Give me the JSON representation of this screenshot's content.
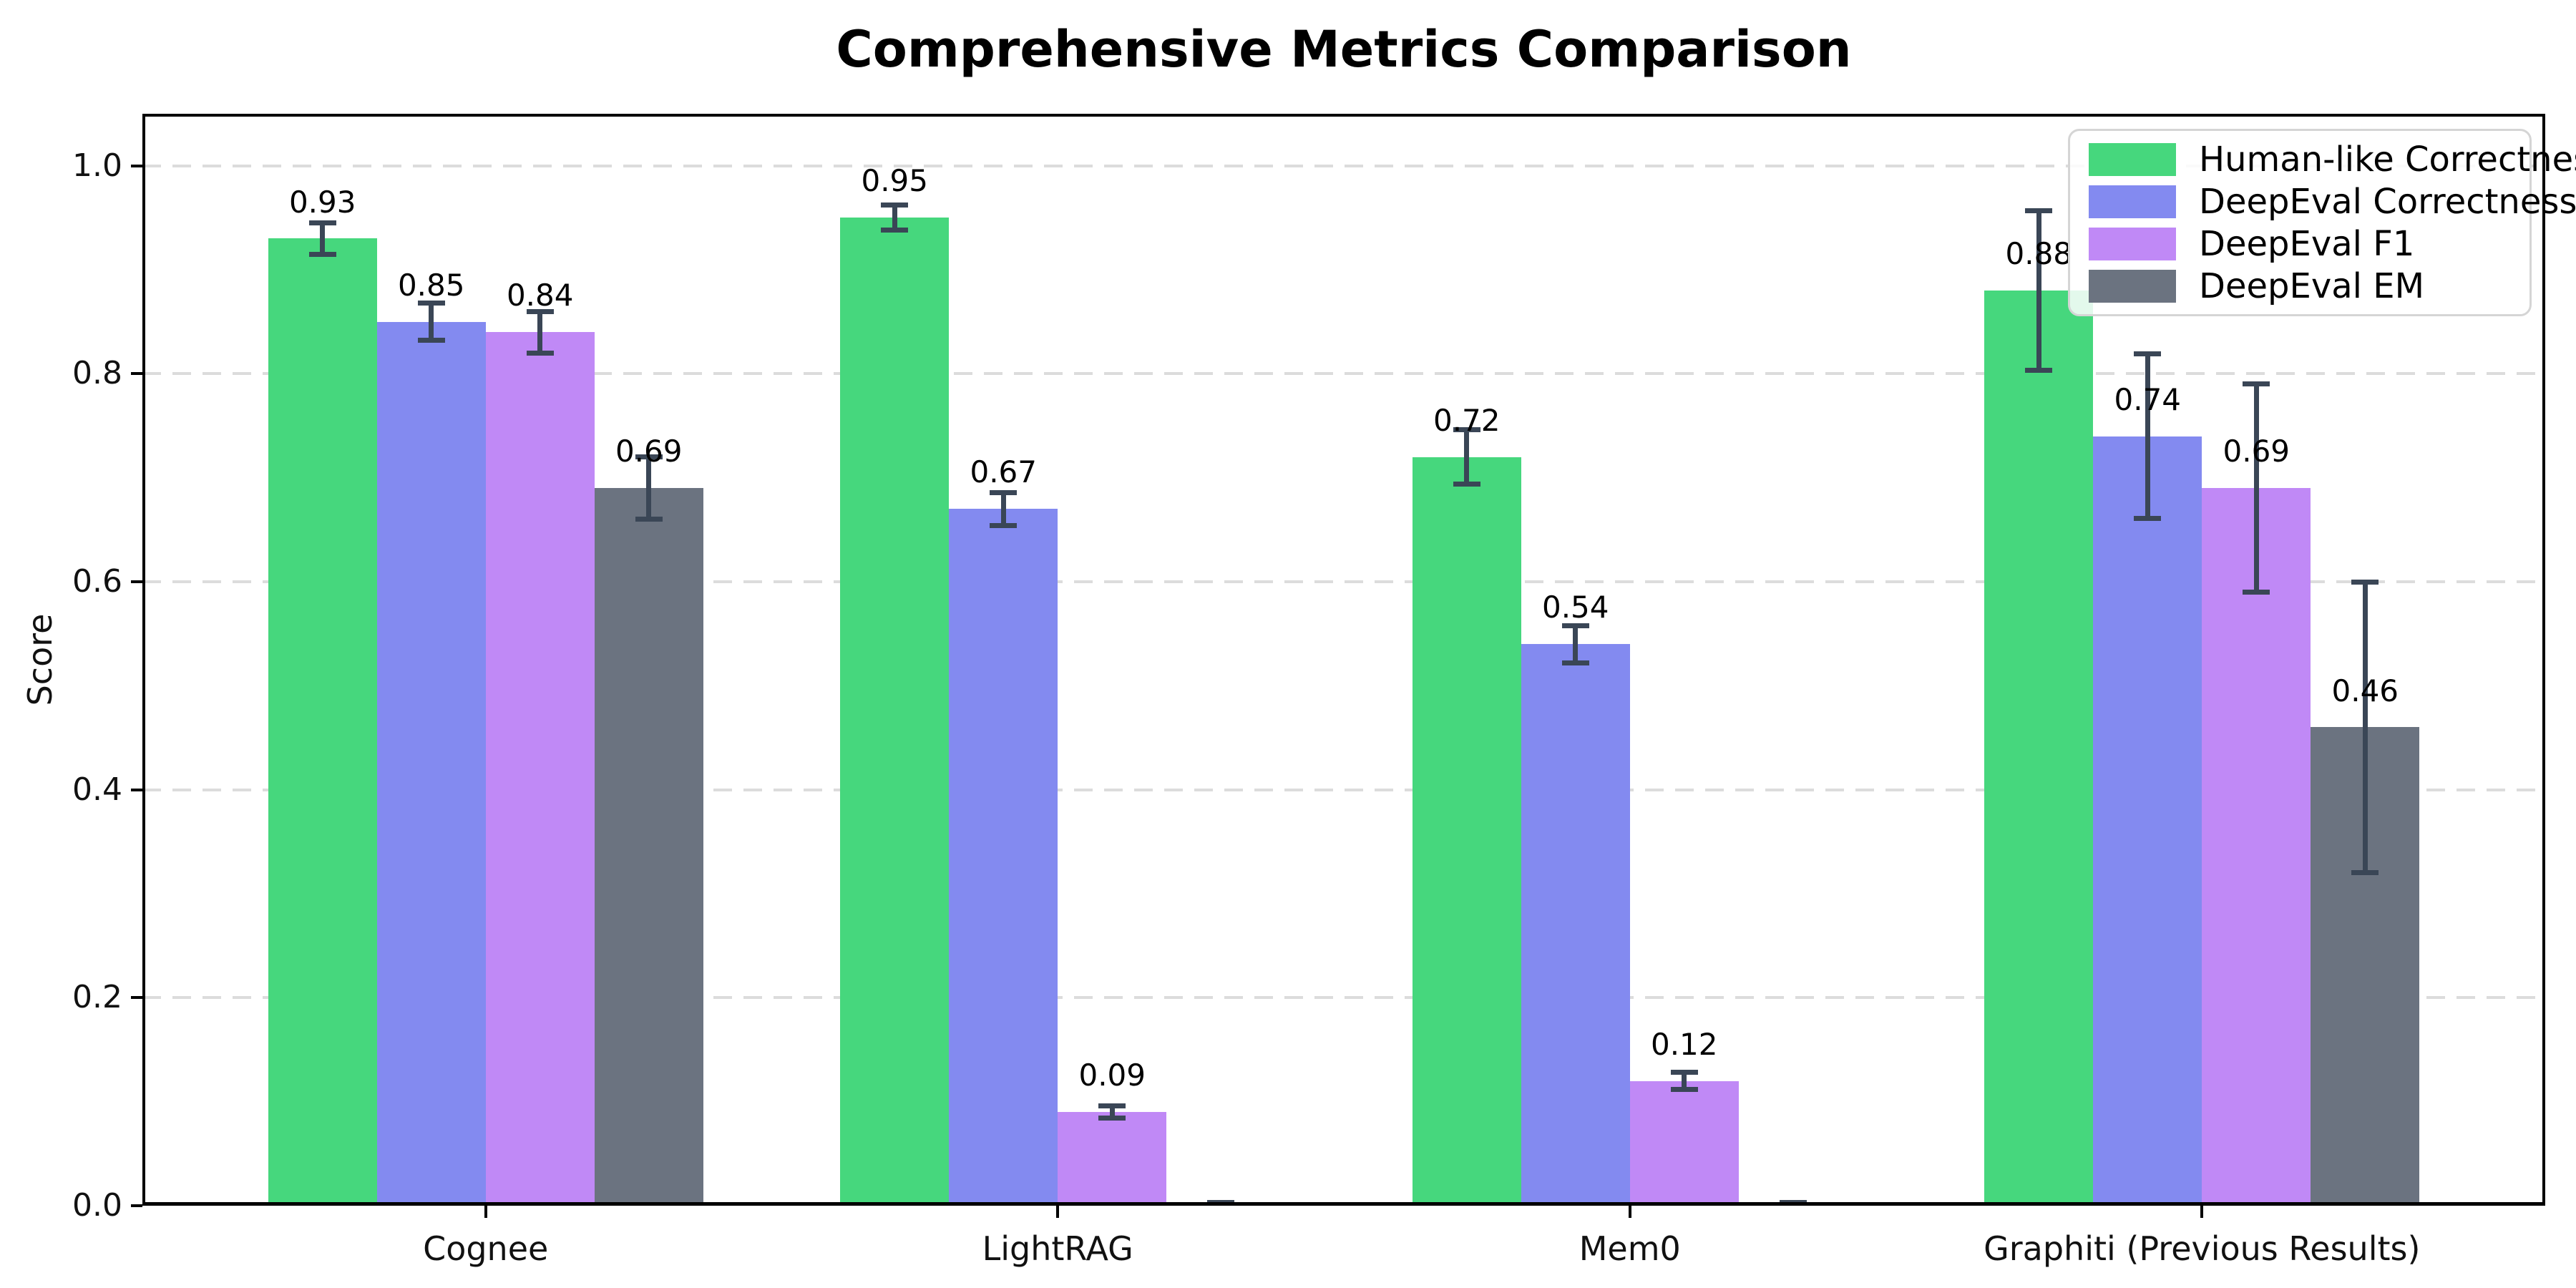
{
  "chart_data": {
    "type": "bar",
    "title": "Comprehensive Metrics Comparison",
    "xlabel": "",
    "ylabel": "Score",
    "ylim": [
      0,
      1.05
    ],
    "yticks": [
      0.0,
      0.2,
      0.4,
      0.6,
      0.8,
      1.0
    ],
    "grid": "horizontal-dashed",
    "legend_position": "upper right",
    "categories": [
      "Cognee",
      "LightRAG",
      "Mem0",
      "Graphiti (Previous Results)"
    ],
    "series": [
      {
        "name": "Human-like Correctness",
        "color": "#46d77d",
        "values": [
          0.93,
          0.95,
          0.72,
          0.88
        ],
        "errors": [
          0.015,
          0.012,
          0.026,
          0.077
        ],
        "labels": [
          "0.93",
          "0.95",
          "0.72",
          "0.88"
        ]
      },
      {
        "name": "DeepEval Correctness",
        "color": "#838af0",
        "values": [
          0.85,
          0.67,
          0.54,
          0.74
        ],
        "errors": [
          0.018,
          0.016,
          0.018,
          0.079
        ],
        "labels": [
          "0.85",
          "0.67",
          "0.54",
          "0.74"
        ]
      },
      {
        "name": "DeepEval F1",
        "color": "#c089f6",
        "values": [
          0.84,
          0.09,
          0.12,
          0.69
        ],
        "errors": [
          0.02,
          0.006,
          0.008,
          0.1
        ],
        "labels": [
          "0.84",
          "0.09",
          "0.12",
          "0.69"
        ]
      },
      {
        "name": "DeepEval EM",
        "color": "#6b7380",
        "values": [
          0.69,
          0.001,
          0.001,
          0.46
        ],
        "errors": [
          0.03,
          0.002,
          0.002,
          0.14
        ],
        "labels": [
          "0.69",
          null,
          null,
          "0.46"
        ]
      }
    ]
  }
}
